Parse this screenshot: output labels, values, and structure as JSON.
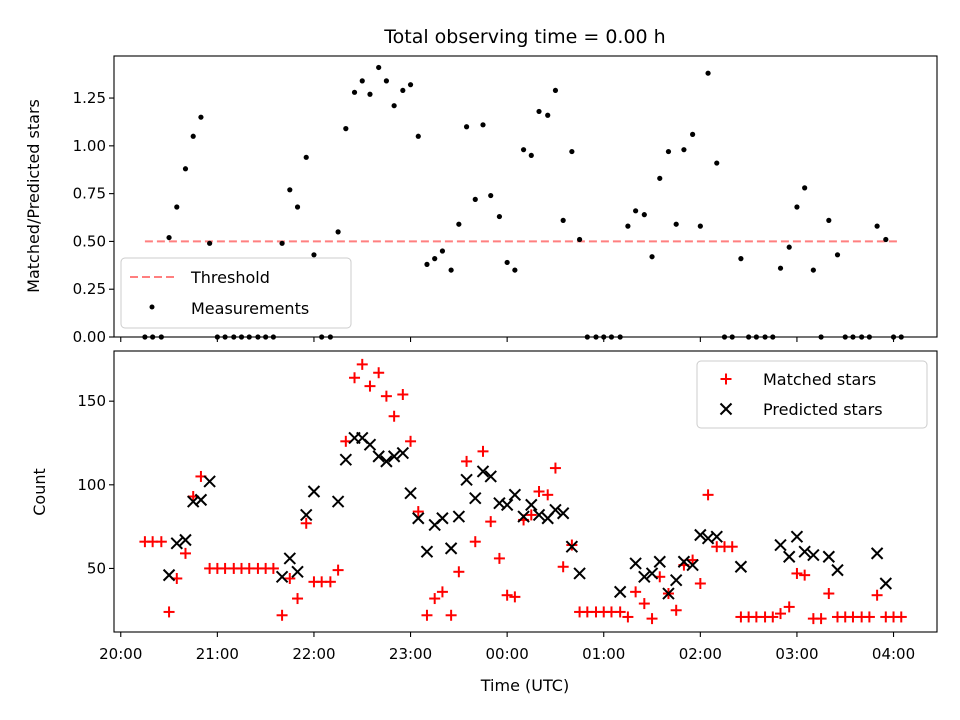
{
  "chart_data": [
    {
      "type": "scatter",
      "title": "Total observing time = 0.00 h",
      "xlabel": "",
      "ylabel": "Matched/Predicted stars",
      "ylim": [
        0,
        1.47
      ],
      "yticks": [
        "0.00",
        "0.25",
        "0.50",
        "0.75",
        "1.00",
        "1.25"
      ],
      "ytick_values": [
        0,
        0.25,
        0.5,
        0.75,
        1.0,
        1.25
      ],
      "x_unit": "hours since 20:00 UTC",
      "xlim": [
        -0.07,
        8.45
      ],
      "legend": {
        "position": "lower-left",
        "entries": [
          "Threshold",
          "Measurements"
        ]
      },
      "threshold": {
        "name": "Threshold",
        "value": 0.5,
        "x_range": [
          0.25,
          8.05
        ],
        "color": "#ff7f7f",
        "style": "dashed"
      },
      "series": [
        {
          "name": "Measurements",
          "color": "#000000",
          "points": [
            [
              0.25,
              0.0
            ],
            [
              0.33,
              0.0
            ],
            [
              0.42,
              0.0
            ],
            [
              0.5,
              0.52
            ],
            [
              0.58,
              0.68
            ],
            [
              0.67,
              0.88
            ],
            [
              0.75,
              1.05
            ],
            [
              0.83,
              1.15
            ],
            [
              0.92,
              0.49
            ],
            [
              1.0,
              0.0
            ],
            [
              1.08,
              0.0
            ],
            [
              1.17,
              0.0
            ],
            [
              1.25,
              0.0
            ],
            [
              1.33,
              0.0
            ],
            [
              1.42,
              0.0
            ],
            [
              1.5,
              0.0
            ],
            [
              1.58,
              0.0
            ],
            [
              1.67,
              0.49
            ],
            [
              1.75,
              0.77
            ],
            [
              1.83,
              0.68
            ],
            [
              1.92,
              0.94
            ],
            [
              2.0,
              0.43
            ],
            [
              2.08,
              0.0
            ],
            [
              2.17,
              0.0
            ],
            [
              2.25,
              0.55
            ],
            [
              2.33,
              1.09
            ],
            [
              2.42,
              1.28
            ],
            [
              2.5,
              1.34
            ],
            [
              2.58,
              1.27
            ],
            [
              2.67,
              1.41
            ],
            [
              2.75,
              1.34
            ],
            [
              2.83,
              1.21
            ],
            [
              2.92,
              1.29
            ],
            [
              3.0,
              1.32
            ],
            [
              3.08,
              1.05
            ],
            [
              3.17,
              0.38
            ],
            [
              3.25,
              0.41
            ],
            [
              3.33,
              0.45
            ],
            [
              3.42,
              0.35
            ],
            [
              3.5,
              0.59
            ],
            [
              3.58,
              1.1
            ],
            [
              3.67,
              0.72
            ],
            [
              3.75,
              1.11
            ],
            [
              3.83,
              0.74
            ],
            [
              3.92,
              0.63
            ],
            [
              4.0,
              0.39
            ],
            [
              4.08,
              0.35
            ],
            [
              4.17,
              0.98
            ],
            [
              4.25,
              0.95
            ],
            [
              4.33,
              1.18
            ],
            [
              4.42,
              1.16
            ],
            [
              4.5,
              1.29
            ],
            [
              4.58,
              0.61
            ],
            [
              4.67,
              0.97
            ],
            [
              4.75,
              0.51
            ],
            [
              4.83,
              0.0
            ],
            [
              4.92,
              0.0
            ],
            [
              5.0,
              0.0
            ],
            [
              5.08,
              0.0
            ],
            [
              5.17,
              0.0
            ],
            [
              5.25,
              0.58
            ],
            [
              5.33,
              0.66
            ],
            [
              5.42,
              0.64
            ],
            [
              5.5,
              0.42
            ],
            [
              5.58,
              0.83
            ],
            [
              5.67,
              0.97
            ],
            [
              5.75,
              0.59
            ],
            [
              5.83,
              0.98
            ],
            [
              5.92,
              1.06
            ],
            [
              6.0,
              0.58
            ],
            [
              6.08,
              1.38
            ],
            [
              6.17,
              0.91
            ],
            [
              6.25,
              0.0
            ],
            [
              6.33,
              0.0
            ],
            [
              6.42,
              0.41
            ],
            [
              6.5,
              0.0
            ],
            [
              6.58,
              0.0
            ],
            [
              6.67,
              0.0
            ],
            [
              6.75,
              0.0
            ],
            [
              6.83,
              0.36
            ],
            [
              6.92,
              0.47
            ],
            [
              7.0,
              0.68
            ],
            [
              7.08,
              0.78
            ],
            [
              7.17,
              0.35
            ],
            [
              7.25,
              0.0
            ],
            [
              7.33,
              0.61
            ],
            [
              7.42,
              0.43
            ],
            [
              7.5,
              0.0
            ],
            [
              7.58,
              0.0
            ],
            [
              7.67,
              0.0
            ],
            [
              7.75,
              0.0
            ],
            [
              7.83,
              0.58
            ],
            [
              7.92,
              0.51
            ],
            [
              8.0,
              0.0
            ],
            [
              8.08,
              0.0
            ]
          ]
        }
      ]
    },
    {
      "type": "scatter",
      "title": "",
      "xlabel": "Time (UTC)",
      "ylabel": "Count",
      "ylim": [
        12,
        180
      ],
      "yticks": [
        "50",
        "100",
        "150"
      ],
      "ytick_values": [
        50,
        100,
        150
      ],
      "x_unit": "hours since 20:00 UTC",
      "xlim": [
        -0.07,
        8.45
      ],
      "xticks": [
        "20:00",
        "21:00",
        "22:00",
        "23:00",
        "00:00",
        "01:00",
        "02:00",
        "03:00",
        "04:00"
      ],
      "xtick_values": [
        0,
        1,
        2,
        3,
        4,
        5,
        6,
        7,
        8
      ],
      "legend": {
        "position": "upper-right",
        "entries": [
          "Matched stars",
          "Predicted stars"
        ]
      },
      "series": [
        {
          "name": "Matched stars",
          "marker": "plus",
          "color": "#ff0000",
          "points": [
            [
              0.25,
              66
            ],
            [
              0.33,
              66
            ],
            [
              0.42,
              66
            ],
            [
              0.5,
              24
            ],
            [
              0.58,
              44
            ],
            [
              0.67,
              59
            ],
            [
              0.75,
              93
            ],
            [
              0.83,
              105
            ],
            [
              0.92,
              50
            ],
            [
              1.0,
              50
            ],
            [
              1.08,
              50
            ],
            [
              1.17,
              50
            ],
            [
              1.25,
              50
            ],
            [
              1.33,
              50
            ],
            [
              1.42,
              50
            ],
            [
              1.5,
              50
            ],
            [
              1.58,
              50
            ],
            [
              1.67,
              22
            ],
            [
              1.75,
              44
            ],
            [
              1.83,
              32
            ],
            [
              1.92,
              77
            ],
            [
              2.0,
              42
            ],
            [
              2.08,
              42
            ],
            [
              2.17,
              42
            ],
            [
              2.25,
              49
            ],
            [
              2.33,
              126
            ],
            [
              2.42,
              164
            ],
            [
              2.5,
              172
            ],
            [
              2.58,
              159
            ],
            [
              2.67,
              167
            ],
            [
              2.75,
              153
            ],
            [
              2.83,
              141
            ],
            [
              2.92,
              154
            ],
            [
              3.0,
              126
            ],
            [
              3.08,
              84
            ],
            [
              3.17,
              22
            ],
            [
              3.25,
              32
            ],
            [
              3.33,
              36
            ],
            [
              3.42,
              22
            ],
            [
              3.5,
              48
            ],
            [
              3.58,
              114
            ],
            [
              3.67,
              66
            ],
            [
              3.75,
              120
            ],
            [
              3.83,
              78
            ],
            [
              3.92,
              56
            ],
            [
              4.0,
              34
            ],
            [
              4.08,
              33
            ],
            [
              4.17,
              79
            ],
            [
              4.25,
              82
            ],
            [
              4.33,
              96
            ],
            [
              4.42,
              94
            ],
            [
              4.5,
              110
            ],
            [
              4.58,
              51
            ],
            [
              4.67,
              64
            ],
            [
              4.75,
              24
            ],
            [
              4.83,
              24
            ],
            [
              4.92,
              24
            ],
            [
              5.0,
              24
            ],
            [
              5.08,
              24
            ],
            [
              5.17,
              24
            ],
            [
              5.25,
              21
            ],
            [
              5.33,
              36
            ],
            [
              5.42,
              29
            ],
            [
              5.5,
              20
            ],
            [
              5.58,
              45
            ],
            [
              5.67,
              35
            ],
            [
              5.75,
              25
            ],
            [
              5.83,
              52
            ],
            [
              5.92,
              55
            ],
            [
              6.0,
              41
            ],
            [
              6.08,
              94
            ],
            [
              6.17,
              63
            ],
            [
              6.25,
              63
            ],
            [
              6.33,
              63
            ],
            [
              6.42,
              21
            ],
            [
              6.5,
              21
            ],
            [
              6.58,
              21
            ],
            [
              6.67,
              21
            ],
            [
              6.75,
              21
            ],
            [
              6.83,
              23
            ],
            [
              6.92,
              27
            ],
            [
              7.0,
              47
            ],
            [
              7.08,
              46
            ],
            [
              7.17,
              20
            ],
            [
              7.25,
              20
            ],
            [
              7.33,
              35
            ],
            [
              7.42,
              21
            ],
            [
              7.5,
              21
            ],
            [
              7.58,
              21
            ],
            [
              7.67,
              21
            ],
            [
              7.75,
              21
            ],
            [
              7.83,
              34
            ],
            [
              7.92,
              21
            ],
            [
              8.0,
              21
            ],
            [
              8.08,
              21
            ]
          ]
        },
        {
          "name": "Predicted stars",
          "marker": "x",
          "color": "#000000",
          "points": [
            [
              0.5,
              46
            ],
            [
              0.58,
              65
            ],
            [
              0.67,
              67
            ],
            [
              0.75,
              90
            ],
            [
              0.83,
              91
            ],
            [
              0.92,
              102
            ],
            [
              1.67,
              45
            ],
            [
              1.75,
              56
            ],
            [
              1.83,
              48
            ],
            [
              1.92,
              82
            ],
            [
              2.0,
              96
            ],
            [
              2.25,
              90
            ],
            [
              2.33,
              115
            ],
            [
              2.42,
              128
            ],
            [
              2.5,
              128
            ],
            [
              2.58,
              124
            ],
            [
              2.67,
              117
            ],
            [
              2.75,
              114
            ],
            [
              2.83,
              117
            ],
            [
              2.92,
              119
            ],
            [
              3.0,
              95
            ],
            [
              3.08,
              80
            ],
            [
              3.17,
              60
            ],
            [
              3.25,
              76
            ],
            [
              3.33,
              80
            ],
            [
              3.42,
              62
            ],
            [
              3.5,
              81
            ],
            [
              3.58,
              103
            ],
            [
              3.67,
              92
            ],
            [
              3.75,
              108
            ],
            [
              3.83,
              105
            ],
            [
              3.92,
              89
            ],
            [
              4.0,
              88
            ],
            [
              4.08,
              94
            ],
            [
              4.17,
              81
            ],
            [
              4.25,
              88
            ],
            [
              4.33,
              82
            ],
            [
              4.42,
              80
            ],
            [
              4.5,
              85
            ],
            [
              4.58,
              83
            ],
            [
              4.67,
              63
            ],
            [
              4.75,
              47
            ],
            [
              5.17,
              36
            ],
            [
              5.33,
              53
            ],
            [
              5.42,
              45
            ],
            [
              5.5,
              47
            ],
            [
              5.58,
              54
            ],
            [
              5.67,
              35
            ],
            [
              5.75,
              43
            ],
            [
              5.83,
              54
            ],
            [
              5.92,
              52
            ],
            [
              6.0,
              70
            ],
            [
              6.08,
              68
            ],
            [
              6.17,
              69
            ],
            [
              6.42,
              51
            ],
            [
              6.83,
              64
            ],
            [
              6.92,
              57
            ],
            [
              7.0,
              69
            ],
            [
              7.08,
              60
            ],
            [
              7.17,
              58
            ],
            [
              7.33,
              57
            ],
            [
              7.42,
              49
            ],
            [
              7.83,
              59
            ],
            [
              7.92,
              41
            ]
          ]
        }
      ]
    }
  ]
}
